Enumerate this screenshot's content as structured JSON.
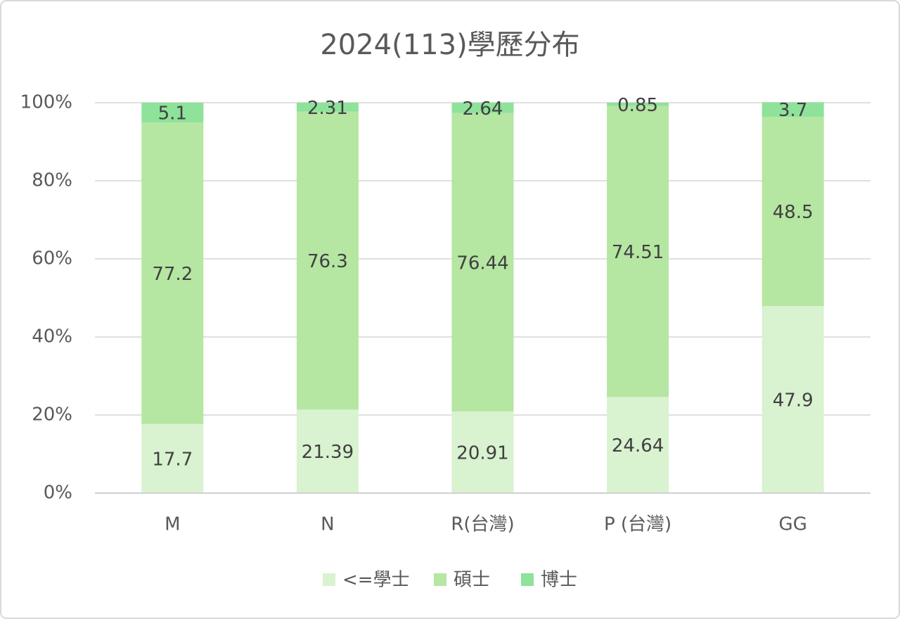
{
  "chart_data": {
    "type": "stacked_bar",
    "title": "2024(113)學歷分布",
    "categories": [
      "M",
      "N",
      "R(台灣)",
      "P (台灣)",
      "GG"
    ],
    "series": [
      {
        "name": "<=學士",
        "color": "#d9f2d0",
        "values": [
          17.7,
          21.39,
          20.91,
          24.64,
          47.9
        ]
      },
      {
        "name": "碩士",
        "color": "#b5e6a2",
        "values": [
          77.2,
          76.3,
          76.44,
          74.51,
          48.5
        ]
      },
      {
        "name": "博士",
        "color": "#8ee29a",
        "values": [
          5.1,
          2.31,
          2.64,
          0.85,
          3.7
        ]
      }
    ],
    "ylim": [
      0,
      100
    ],
    "yticks": [
      {
        "value": 0,
        "label": "0%"
      },
      {
        "value": 20,
        "label": "20%"
      },
      {
        "value": 40,
        "label": "40%"
      },
      {
        "value": 60,
        "label": "60%"
      },
      {
        "value": 80,
        "label": "80%"
      },
      {
        "value": 100,
        "label": "100%"
      }
    ],
    "grid": true,
    "legend": "bottom"
  }
}
